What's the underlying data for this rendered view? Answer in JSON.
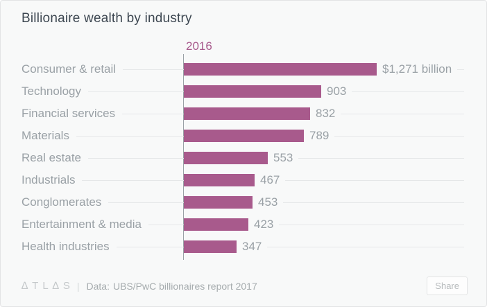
{
  "chart": {
    "title": "Billionaire wealth by industry",
    "series_label": "2016"
  },
  "chart_data": {
    "type": "bar",
    "orientation": "horizontal",
    "title": "Billionaire wealth by industry",
    "series_label": "2016",
    "categories": [
      "Consumer & retail",
      "Technology",
      "Financial services",
      "Materials",
      "Real estate",
      "Industrials",
      "Conglomerates",
      "Entertainment & media",
      "Health industries"
    ],
    "values": [
      1271,
      903,
      832,
      789,
      553,
      467,
      453,
      423,
      347
    ],
    "value_labels": [
      "$1,271 billion",
      "903",
      "832",
      "789",
      "553",
      "467",
      "453",
      "423",
      "347"
    ],
    "xlim": [
      0,
      1271
    ],
    "bar_color": "#a85a8c",
    "grid": "horizontal-row-leader-lines",
    "legend_position": "top"
  },
  "footer": {
    "logo": "∆TL∆S",
    "separator": "|",
    "data_label": "Data:",
    "source": "UBS/PwC billionaires report 2017",
    "share_label": "Share"
  },
  "colors": {
    "background": "#f8f9f9",
    "bar": "#a85a8c",
    "title_text": "#3d4751",
    "label_text": "#9aa1a6",
    "row_line": "#e5e7e8"
  }
}
